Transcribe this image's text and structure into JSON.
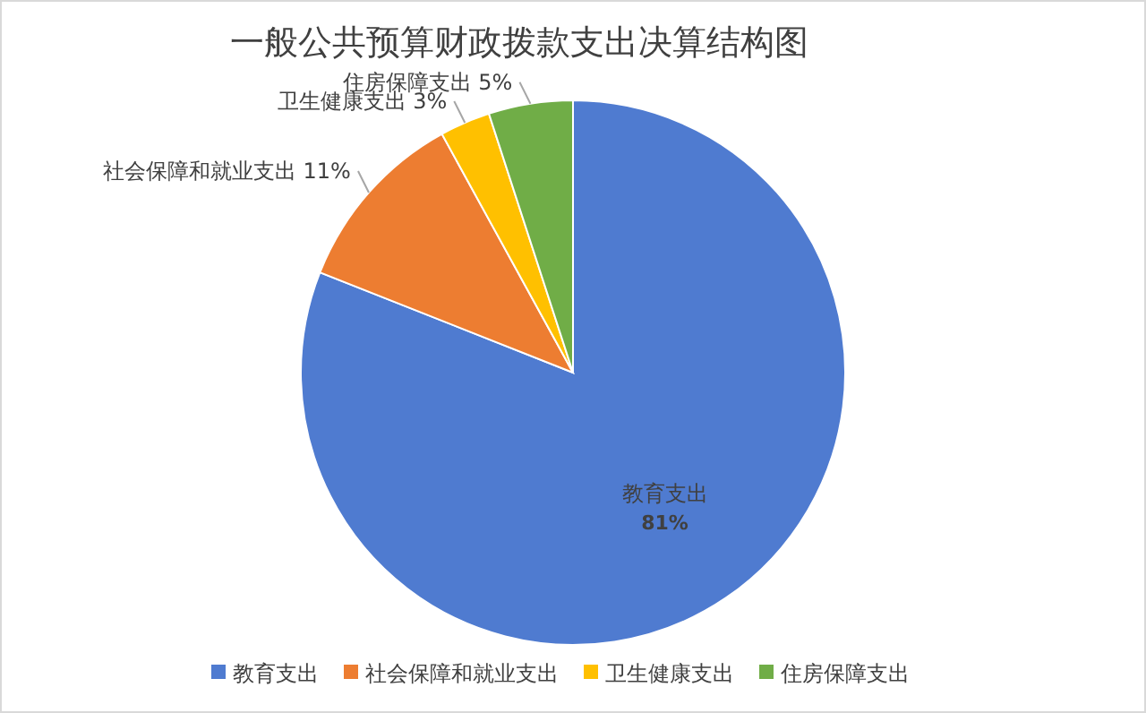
{
  "chart_data": {
    "type": "pie",
    "title": "一般公共预算财政拨款支出决算结构图",
    "categories": [
      "教育支出",
      "社会保障和就业支出",
      "卫生健康支出",
      "住房保障支出"
    ],
    "values": [
      81,
      11,
      3,
      5
    ],
    "value_labels": [
      "81%",
      "11%",
      "3%",
      "5%"
    ],
    "colors": [
      "#4f7bd0",
      "#ed7d31",
      "#ffc000",
      "#70ad47"
    ],
    "legend": "bottom"
  }
}
